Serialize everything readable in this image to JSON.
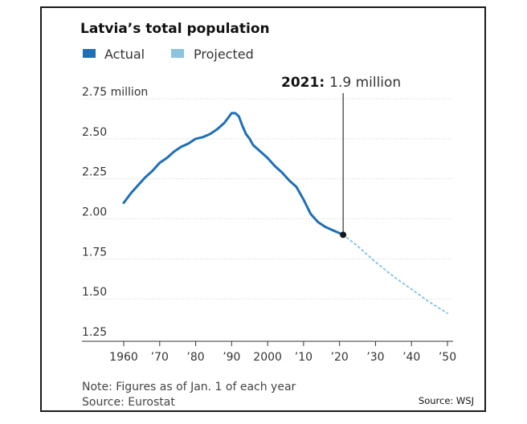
{
  "chart_data": {
    "type": "line",
    "title": "Latvia’s total population",
    "legend": [
      {
        "label": "Actual",
        "color": "#1f6fb5"
      },
      {
        "label": "Projected",
        "color": "#8cc4e0"
      }
    ],
    "x_ticks": [
      "1960",
      "’70",
      "’80",
      "’90",
      "2000",
      "’10",
      "’20",
      "’30",
      "’40",
      "’50"
    ],
    "y_ticks": [
      "1.25",
      "1.50",
      "1.75",
      "2.00",
      "2.25",
      "2.50",
      "2.75 million"
    ],
    "xlim": [
      1960,
      2050
    ],
    "ylim": [
      1.25,
      2.75
    ],
    "series": [
      {
        "name": "Actual",
        "color": "#1f6fb5",
        "x": [
          1960,
          1962,
          1964,
          1966,
          1968,
          1970,
          1972,
          1974,
          1976,
          1978,
          1980,
          1982,
          1984,
          1986,
          1988,
          1989,
          1990,
          1991,
          1992,
          1993,
          1994,
          1995,
          1996,
          1998,
          2000,
          2002,
          2004,
          2006,
          2008,
          2010,
          2012,
          2014,
          2016,
          2018,
          2020,
          2021
        ],
        "values": [
          2.1,
          2.16,
          2.21,
          2.26,
          2.3,
          2.35,
          2.38,
          2.42,
          2.45,
          2.47,
          2.5,
          2.51,
          2.53,
          2.56,
          2.6,
          2.63,
          2.66,
          2.66,
          2.64,
          2.58,
          2.53,
          2.5,
          2.46,
          2.42,
          2.38,
          2.33,
          2.29,
          2.24,
          2.2,
          2.12,
          2.03,
          1.98,
          1.95,
          1.93,
          1.91,
          1.9
        ]
      },
      {
        "name": "Projected",
        "color": "#8cc4e0",
        "x": [
          2021,
          2025,
          2030,
          2035,
          2040,
          2045,
          2050
        ],
        "values": [
          1.9,
          1.83,
          1.73,
          1.64,
          1.56,
          1.48,
          1.41
        ]
      }
    ],
    "annotation": {
      "year_label": "2021:",
      "value_label": "1.9 million",
      "x": 2021,
      "y": 1.9
    },
    "grid": true
  },
  "footer": {
    "note": "Note: Figures as of Jan. 1 of each year",
    "source": "Source: Eurostat",
    "credit": "Source: WSJ"
  }
}
